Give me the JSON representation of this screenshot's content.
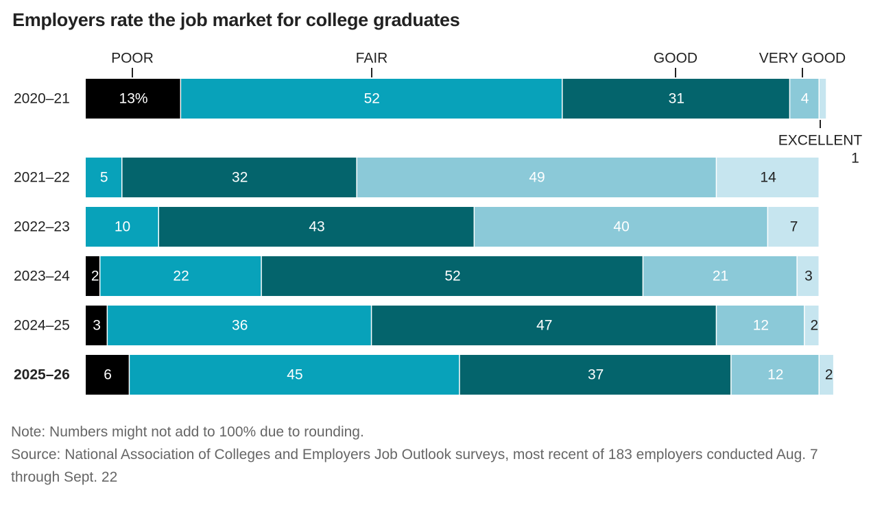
{
  "title": "Employers rate the job market for college graduates",
  "chart_data": {
    "type": "bar",
    "orientation": "horizontal",
    "stacked": true,
    "title": "Employers rate the job market for college graduates",
    "categories": [
      "2020–21",
      "2021–22",
      "2022–23",
      "2023–24",
      "2024–25",
      "2025–26"
    ],
    "highlight_category": "2025–26",
    "first_value_suffix": "%",
    "series": [
      {
        "name": "POOR",
        "color": "#000000",
        "values": [
          13,
          0,
          0,
          2,
          3,
          6
        ]
      },
      {
        "name": "FAIR",
        "color": "#08a2ba",
        "values": [
          52,
          5,
          10,
          22,
          36,
          45
        ]
      },
      {
        "name": "GOOD",
        "color": "#04646c",
        "values": [
          31,
          32,
          43,
          52,
          47,
          37
        ]
      },
      {
        "name": "VERY GOOD",
        "color": "#8bc9d8",
        "values": [
          4,
          49,
          40,
          21,
          12,
          12
        ]
      },
      {
        "name": "EXCELLENT",
        "color": "#c6e5ef",
        "values": [
          1,
          14,
          7,
          3,
          2,
          2
        ]
      }
    ],
    "excellent_first_label": "1",
    "legend_placement": "top (labels above first bar)",
    "grid": false
  },
  "notes": {
    "note": "Note: Numbers might not add to 100% due to rounding.",
    "source": "Source: National Association of Colleges and Employers Job Outlook surveys, most recent of 183 employers conducted Aug. 7 through Sept. 22"
  }
}
